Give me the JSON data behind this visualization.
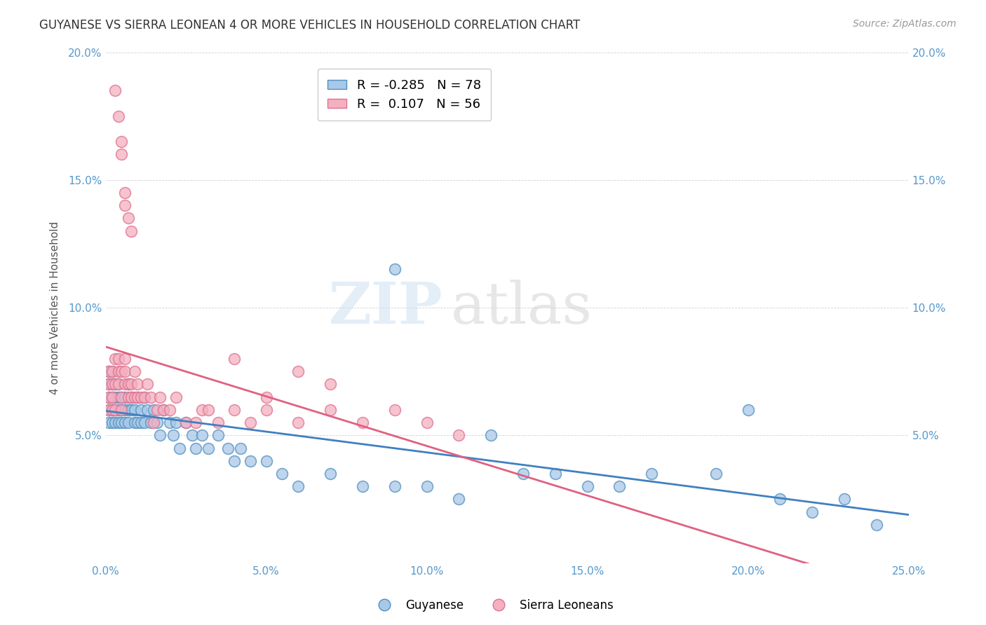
{
  "title": "GUYANESE VS SIERRA LEONEAN 4 OR MORE VEHICLES IN HOUSEHOLD CORRELATION CHART",
  "source": "Source: ZipAtlas.com",
  "ylabel": "4 or more Vehicles in Household",
  "xlim": [
    0.0,
    0.25
  ],
  "ylim": [
    0.0,
    0.2
  ],
  "xticks": [
    0.0,
    0.05,
    0.1,
    0.15,
    0.2,
    0.25
  ],
  "yticks": [
    0.0,
    0.05,
    0.1,
    0.15,
    0.2
  ],
  "R_guyanese": -0.285,
  "N_guyanese": 78,
  "R_sierra": 0.107,
  "N_sierra": 56,
  "blue_color": "#a8c8e8",
  "pink_color": "#f4b0c0",
  "blue_edge_color": "#5090c0",
  "pink_edge_color": "#e07090",
  "blue_line_color": "#4080c0",
  "pink_line_color": "#e06080",
  "tick_color": "#5599cc",
  "watermark": "ZIPatlas",
  "guyanese_x": [
    0.001,
    0.001,
    0.001,
    0.001,
    0.001,
    0.002,
    0.002,
    0.002,
    0.002,
    0.002,
    0.003,
    0.003,
    0.003,
    0.003,
    0.004,
    0.004,
    0.004,
    0.004,
    0.005,
    0.005,
    0.005,
    0.006,
    0.006,
    0.006,
    0.007,
    0.007,
    0.007,
    0.008,
    0.008,
    0.009,
    0.009,
    0.01,
    0.01,
    0.011,
    0.011,
    0.012,
    0.012,
    0.013,
    0.014,
    0.015,
    0.016,
    0.017,
    0.018,
    0.02,
    0.021,
    0.022,
    0.023,
    0.025,
    0.027,
    0.028,
    0.03,
    0.032,
    0.035,
    0.038,
    0.04,
    0.042,
    0.045,
    0.05,
    0.055,
    0.06,
    0.07,
    0.08,
    0.09,
    0.1,
    0.11,
    0.13,
    0.15,
    0.16,
    0.19,
    0.21,
    0.22,
    0.23,
    0.24,
    0.09,
    0.12,
    0.14,
    0.17,
    0.2
  ],
  "guyanese_y": [
    0.06,
    0.065,
    0.07,
    0.075,
    0.055,
    0.065,
    0.07,
    0.06,
    0.075,
    0.055,
    0.065,
    0.055,
    0.06,
    0.07,
    0.065,
    0.055,
    0.07,
    0.06,
    0.065,
    0.06,
    0.055,
    0.065,
    0.06,
    0.055,
    0.06,
    0.055,
    0.07,
    0.06,
    0.065,
    0.055,
    0.06,
    0.055,
    0.065,
    0.055,
    0.06,
    0.055,
    0.065,
    0.06,
    0.055,
    0.06,
    0.055,
    0.05,
    0.06,
    0.055,
    0.05,
    0.055,
    0.045,
    0.055,
    0.05,
    0.045,
    0.05,
    0.045,
    0.05,
    0.045,
    0.04,
    0.045,
    0.04,
    0.04,
    0.035,
    0.03,
    0.035,
    0.03,
    0.03,
    0.03,
    0.025,
    0.035,
    0.03,
    0.03,
    0.035,
    0.025,
    0.02,
    0.025,
    0.015,
    0.115,
    0.05,
    0.035,
    0.035,
    0.06
  ],
  "sierra_x": [
    0.001,
    0.001,
    0.001,
    0.001,
    0.002,
    0.002,
    0.002,
    0.002,
    0.003,
    0.003,
    0.003,
    0.004,
    0.004,
    0.004,
    0.005,
    0.005,
    0.005,
    0.006,
    0.006,
    0.006,
    0.007,
    0.007,
    0.008,
    0.008,
    0.009,
    0.009,
    0.01,
    0.01,
    0.011,
    0.012,
    0.013,
    0.014,
    0.015,
    0.016,
    0.017,
    0.018,
    0.02,
    0.022,
    0.025,
    0.028,
    0.03,
    0.032,
    0.035,
    0.04,
    0.045,
    0.05,
    0.06,
    0.07,
    0.08,
    0.09,
    0.1,
    0.11,
    0.04,
    0.05,
    0.06,
    0.07
  ],
  "sierra_y": [
    0.075,
    0.065,
    0.07,
    0.06,
    0.075,
    0.065,
    0.07,
    0.06,
    0.08,
    0.07,
    0.06,
    0.075,
    0.07,
    0.08,
    0.065,
    0.075,
    0.06,
    0.075,
    0.07,
    0.08,
    0.07,
    0.065,
    0.07,
    0.065,
    0.065,
    0.075,
    0.07,
    0.065,
    0.065,
    0.065,
    0.07,
    0.065,
    0.055,
    0.06,
    0.065,
    0.06,
    0.06,
    0.065,
    0.055,
    0.055,
    0.06,
    0.06,
    0.055,
    0.06,
    0.055,
    0.06,
    0.055,
    0.06,
    0.055,
    0.06,
    0.055,
    0.05,
    0.08,
    0.065,
    0.075,
    0.07
  ],
  "sierra_outlier_x": [
    0.003,
    0.004,
    0.005,
    0.005,
    0.006,
    0.006,
    0.007,
    0.008
  ],
  "sierra_outlier_y": [
    0.185,
    0.175,
    0.16,
    0.165,
    0.145,
    0.14,
    0.135,
    0.13
  ]
}
